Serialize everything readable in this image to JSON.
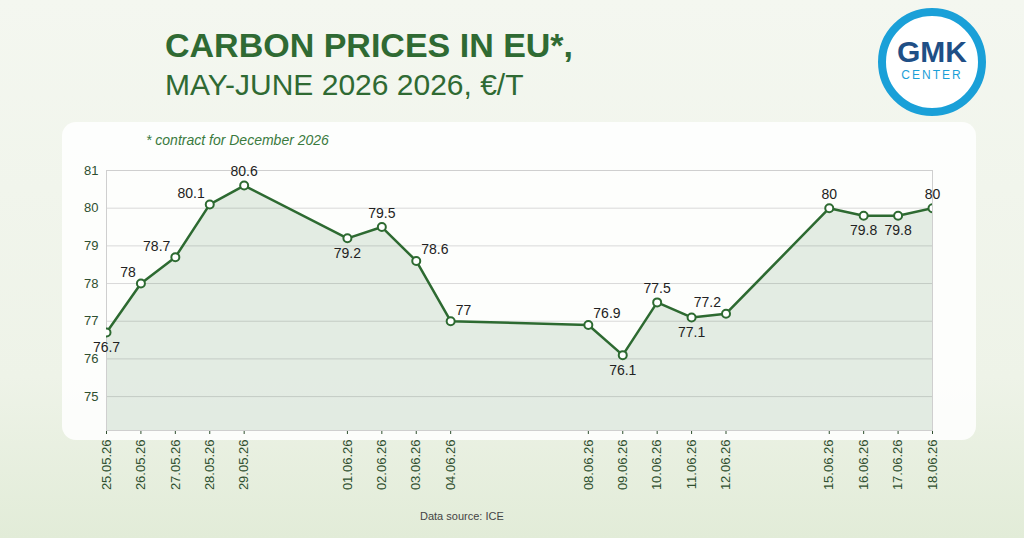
{
  "chart_data": {
    "type": "line",
    "title": "CARBON PRICES IN EU*,",
    "subtitle": "MAY-JUNE 2026 2026, €/T",
    "note": "* contract for December 2026",
    "source": "Data source: ICE",
    "x": [
      "25.05.26",
      "26.05.26",
      "27.05.26",
      "28.05.26",
      "29.05.26",
      "01.06.26",
      "02.06.26",
      "03.06.26",
      "04.06.26",
      "08.06.26",
      "09.06.26",
      "10.06.26",
      "11.06.26",
      "12.06.26",
      "15.06.26",
      "16.06.26",
      "17.06.26",
      "18.06.26"
    ],
    "values": [
      76.7,
      78,
      78.7,
      80.1,
      80.6,
      79.2,
      79.5,
      78.6,
      77,
      76.9,
      76.1,
      77.5,
      77.1,
      77.2,
      80,
      79.8,
      79.8,
      80
    ],
    "color": "#2d6a31",
    "marker": "circle",
    "line_style": "solid",
    "data_labels": true,
    "grid": true,
    "xlim": [
      "25.05.26",
      "18.06.26"
    ],
    "xticks": [
      "25.05.26",
      "26.05.26",
      "27.05.26",
      "28.05.26",
      "29.05.26",
      "01.06.26",
      "02.06.26",
      "03.06.26",
      "04.06.26",
      "08.06.26",
      "09.06.26",
      "10.06.26",
      "11.06.26",
      "12.06.26",
      "15.06.26",
      "16.06.26",
      "17.06.26",
      "18.06.26"
    ],
    "ylim": [
      74.1,
      81
    ],
    "yticks": [
      75,
      76,
      77,
      78,
      79,
      80,
      81
    ]
  },
  "logo": [
    "GMK",
    "CENTER"
  ]
}
